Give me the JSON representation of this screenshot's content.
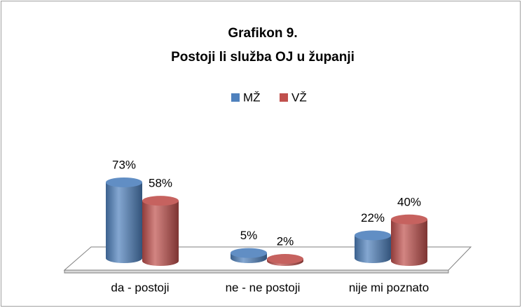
{
  "chart_data": {
    "type": "bar3d",
    "title": "Grafikon 9.",
    "subtitle": "Postoji li služba OJ u županji",
    "categories": [
      "da - postoji",
      "ne - ne postoji",
      "nije mi poznato"
    ],
    "series": [
      {
        "name": "MŽ",
        "color": "#4f81bd",
        "values": [
          73,
          5,
          22
        ],
        "value_labels": [
          "73%",
          "5%",
          "22%"
        ]
      },
      {
        "name": "VŽ",
        "color": "#c0504d",
        "values": [
          58,
          2,
          40
        ],
        "value_labels": [
          "58%",
          "2%",
          "40%"
        ]
      }
    ],
    "legend": "top"
  }
}
